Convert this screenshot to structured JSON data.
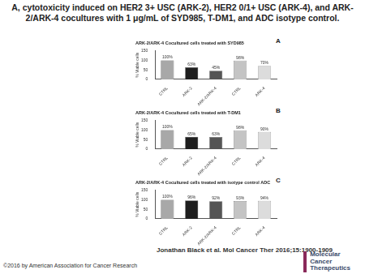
{
  "page": {
    "title": "A, cytotoxicity induced on HER2 3+ USC (ARK-2), HER2 0/1+ USC (ARK-4), and ARK-2/ARK-4 cocultures with 1 μg/mL of SYD985, T-DM1, and ADC isotype control.",
    "citation": "Jonathan Black et al. Mol Cancer Ther 2016;15:1900-1909",
    "copyright": "©2016 by American Association for Cancer Research",
    "journal": [
      "Molecular",
      "Cancer",
      "Therapeutics"
    ]
  },
  "chart_data": [
    {
      "type": "bar",
      "annotations": [
        "A"
      ],
      "title": "ARK-2/ARK-4 Cocultured cells treated with SYD985",
      "y_label": "% Viable cells",
      "categories": [
        "CTRL",
        "ARK-2",
        "ARK-2/ARK-4",
        "CTRL",
        "ARK-4"
      ],
      "values": [
        100,
        63,
        45,
        98,
        70
      ],
      "value_labels": [
        "100%",
        "63%",
        "45%",
        "98%",
        "70%"
      ],
      "colors": [
        "#a8a8a8",
        "#1e1e1e",
        "#555555",
        "#c4c4c4",
        "#dcdcdc"
      ],
      "ylim": [
        0,
        150
      ],
      "yticks": [
        0,
        50,
        100,
        150
      ],
      "grid": false,
      "data_labels": true
    },
    {
      "type": "bar",
      "annotations": [
        "B"
      ],
      "title": "ARK-2/ARK-4 Cocultured cells treated with T-DM1",
      "y_label": "% Viable cells",
      "categories": [
        "CTRL",
        "ARK-2",
        "ARK-2/ARK-4",
        "CTRL",
        "ARK-4"
      ],
      "values": [
        100,
        65,
        63,
        98,
        90
      ],
      "value_labels": [
        "100%",
        "65%",
        "63%",
        "98%",
        "90%"
      ],
      "colors": [
        "#a8a8a8",
        "#1e1e1e",
        "#555555",
        "#c4c4c4",
        "#dcdcdc"
      ],
      "ylim": [
        0,
        150
      ],
      "yticks": [
        0,
        50,
        100,
        150
      ],
      "grid": false,
      "data_labels": true
    },
    {
      "type": "bar",
      "annotations": [
        "C"
      ],
      "title": "ARK-2/ARK-4 Cocultured cells treated with isotype control ADC",
      "y_label": "% Viable cells",
      "categories": [
        "CTRL",
        "ARK-2",
        "ARK-2/ARK-4",
        "CTRL",
        "ARK-4"
      ],
      "values": [
        100,
        96,
        92,
        93,
        94
      ],
      "value_labels": [
        "100%",
        "96%",
        "92%",
        "93%",
        "94%"
      ],
      "colors": [
        "#a8a8a8",
        "#1e1e1e",
        "#555555",
        "#c4c4c4",
        "#dcdcdc"
      ],
      "ylim": [
        0,
        150
      ],
      "yticks": [
        0,
        50,
        100,
        150
      ],
      "grid": false,
      "data_labels": true
    }
  ]
}
